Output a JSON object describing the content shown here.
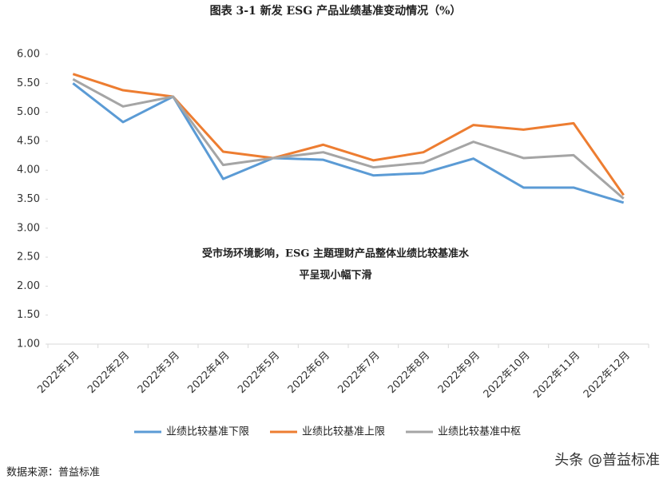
{
  "chart_data": {
    "type": "line",
    "title": "图表 3-1  新发 ESG 产品业绩基准变动情况（%）",
    "annotation": [
      "受市场环境影响，ESG 主题理财产品整体业绩比较基准水",
      "平呈现小幅下滑"
    ],
    "source": "数据来源：普益标准",
    "watermark": "头条 @普益标准",
    "categories": [
      "2022年1月",
      "2022年2月",
      "2022年3月",
      "2022年4月",
      "2022年5月",
      "2022年6月",
      "2022年7月",
      "2022年8月",
      "2022年9月",
      "2022年10月",
      "2022年11月",
      "2022年12月"
    ],
    "series": [
      {
        "name": "业绩比较基准下限",
        "color": "#5b9bd5",
        "values": [
          5.5,
          4.83,
          5.27,
          3.85,
          4.21,
          4.18,
          3.91,
          3.95,
          4.2,
          3.7,
          3.7,
          3.44
        ]
      },
      {
        "name": "业绩比较基准上限",
        "color": "#ed7d31",
        "values": [
          5.66,
          5.38,
          5.27,
          4.32,
          4.21,
          4.44,
          4.17,
          4.31,
          4.78,
          4.7,
          4.81,
          3.57
        ]
      },
      {
        "name": "业绩比较基准中枢",
        "color": "#a5a5a5",
        "values": [
          5.57,
          5.1,
          5.27,
          4.09,
          4.21,
          4.31,
          4.05,
          4.13,
          4.49,
          4.21,
          4.26,
          3.51
        ]
      }
    ],
    "ylim": [
      1,
      6
    ],
    "yticks": [
      {
        "value": 1,
        "label": "1.00"
      },
      {
        "value": 1.5,
        "label": "1.50"
      },
      {
        "value": 2,
        "label": "2.00"
      },
      {
        "value": 2.5,
        "label": "2.50"
      },
      {
        "value": 3,
        "label": "3.00"
      },
      {
        "value": 3.5,
        "label": "3.50"
      },
      {
        "value": 4,
        "label": "4.00"
      },
      {
        "value": 4.5,
        "label": "4.50"
      },
      {
        "value": 5,
        "label": "5.00"
      },
      {
        "value": 5.5,
        "label": "5.50"
      },
      {
        "value": 6,
        "label": "6.00"
      }
    ],
    "grid": false,
    "legend": "bottom"
  }
}
